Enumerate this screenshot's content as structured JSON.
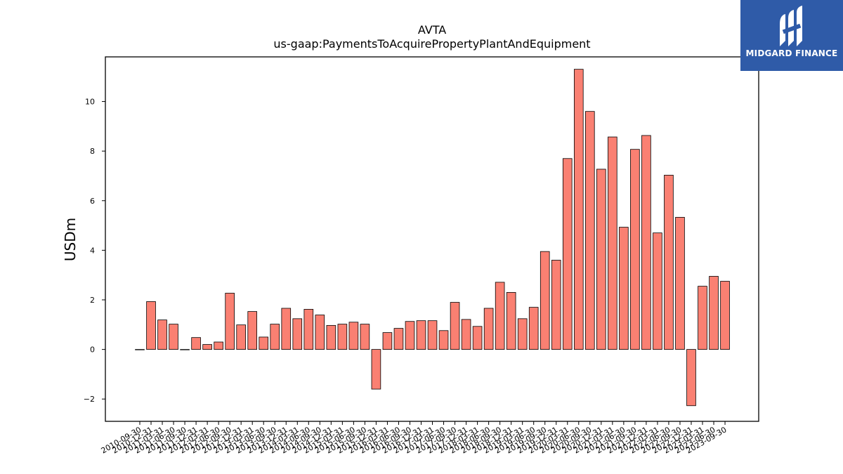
{
  "chart_data": {
    "type": "bar",
    "title": "AVTA",
    "subtitle": "us-gaap:PaymentsToAcquirePropertyPlantAndEquipment",
    "xlabel": "",
    "ylabel": "USDm",
    "ylim": [
      -2.9,
      11.8
    ],
    "yticks": [
      -2,
      0,
      2,
      4,
      6,
      8,
      10
    ],
    "grid": false,
    "bar_color": "#fa8072",
    "bar_edge_color": "#000000",
    "categories": [
      "2010-09-30",
      "2010-12-31",
      "2011-03-31",
      "2011-06-30",
      "2011-09-30",
      "2011-12-31",
      "2012-03-31",
      "2012-06-30",
      "2012-09-30",
      "2012-12-31",
      "2013-03-31",
      "2013-06-30",
      "2013-09-30",
      "2013-12-31",
      "2014-03-31",
      "2014-06-30",
      "2014-09-30",
      "2014-12-31",
      "2015-03-31",
      "2015-06-30",
      "2015-09-30",
      "2015-12-31",
      "2016-03-31",
      "2016-06-30",
      "2016-09-30",
      "2016-12-31",
      "2017-03-31",
      "2017-06-30",
      "2017-09-30",
      "2017-12-31",
      "2018-03-31",
      "2018-06-30",
      "2018-09-30",
      "2018-12-31",
      "2019-03-31",
      "2019-06-30",
      "2019-09-30",
      "2019-12-31",
      "2020-03-31",
      "2020-06-30",
      "2020-09-30",
      "2020-12-31",
      "2021-03-31",
      "2021-06-30",
      "2021-09-30",
      "2021-12-31",
      "2022-03-31",
      "2022-06-30",
      "2022-09-30",
      "2022-12-31",
      "2023-03-31",
      "2023-06-30",
      "2023-09-30"
    ],
    "values": [
      0.0,
      1.93,
      1.19,
      1.02,
      0.0,
      0.48,
      0.2,
      0.3,
      2.27,
      0.99,
      1.53,
      0.5,
      1.02,
      1.66,
      1.24,
      1.62,
      1.39,
      0.97,
      1.02,
      1.1,
      1.02,
      -1.6,
      0.68,
      0.85,
      1.13,
      1.16,
      1.16,
      0.76,
      1.9,
      1.21,
      0.93,
      1.66,
      2.71,
      2.3,
      1.24,
      1.7,
      3.95,
      3.6,
      7.7,
      11.3,
      9.6,
      7.27,
      8.57,
      4.93,
      8.07,
      8.63,
      4.7,
      7.03,
      5.33,
      -2.27,
      2.55,
      2.95,
      2.75
    ]
  },
  "logo": {
    "text": "MIDGARD FINANCE",
    "background": "#2f5ba8"
  }
}
